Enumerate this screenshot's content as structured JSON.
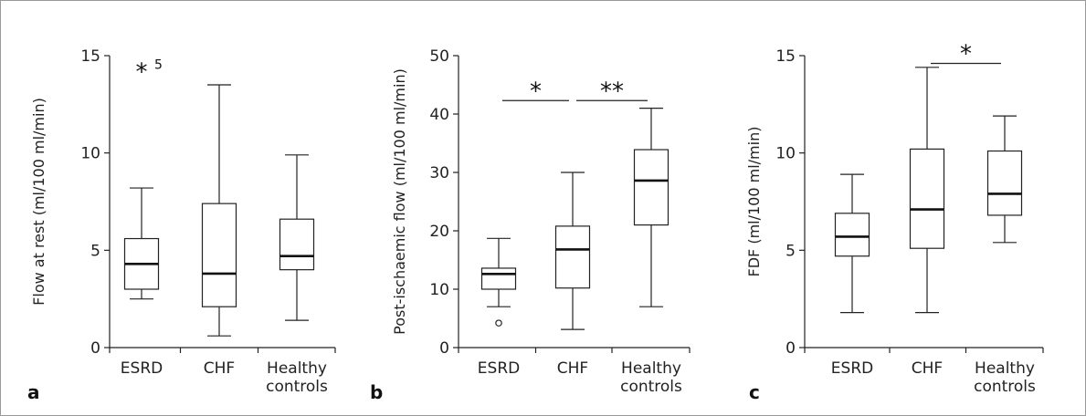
{
  "chart_data": [
    {
      "type": "boxplot",
      "panel": "a",
      "ylabel": "Flow at rest (ml/100 ml/min)",
      "ylim": [
        0,
        15
      ],
      "yticks": [
        0,
        5,
        10,
        15
      ],
      "categories": [
        "ESRD",
        "CHF",
        "Healthy controls"
      ],
      "category_lines": [
        [
          "ESRD"
        ],
        [
          "CHF"
        ],
        [
          "Healthy",
          "controls"
        ]
      ],
      "boxes": [
        {
          "min": 2.5,
          "q1": 3.0,
          "median": 4.3,
          "q3": 5.6,
          "max": 8.2
        },
        {
          "min": 0.6,
          "q1": 2.1,
          "median": 3.8,
          "q3": 7.4,
          "max": 13.5
        },
        {
          "min": 1.4,
          "q1": 4.0,
          "median": 4.7,
          "q3": 6.6,
          "max": 9.9
        }
      ],
      "outliers": [],
      "annotations": [
        {
          "category_index": 0,
          "y": 14.5,
          "symbol": "*",
          "label": "5"
        }
      ],
      "significance": []
    },
    {
      "type": "boxplot",
      "panel": "b",
      "ylabel": "Post-ischaemic flow (ml/100 ml/min)",
      "ylim": [
        0,
        50
      ],
      "yticks": [
        0,
        10,
        20,
        30,
        40,
        50
      ],
      "categories": [
        "ESRD",
        "CHF",
        "Healthy controls"
      ],
      "category_lines": [
        [
          "ESRD"
        ],
        [
          "CHF"
        ],
        [
          "Healthy",
          "controls"
        ]
      ],
      "boxes": [
        {
          "min": 7.0,
          "q1": 10.0,
          "median": 12.6,
          "q3": 13.6,
          "max": 18.7
        },
        {
          "min": 3.1,
          "q1": 10.2,
          "median": 16.8,
          "q3": 20.8,
          "max": 30.0
        },
        {
          "min": 7.0,
          "q1": 21.0,
          "median": 28.6,
          "q3": 33.9,
          "max": 41.0
        }
      ],
      "outliers": [
        {
          "category_index": 0,
          "y": 4.2
        }
      ],
      "annotations": [],
      "significance": [
        {
          "from": 0,
          "to": 1,
          "y": 42.3,
          "label": "*"
        },
        {
          "from": 1,
          "to": 2,
          "y": 42.3,
          "label": "**"
        }
      ]
    },
    {
      "type": "boxplot",
      "panel": "c",
      "ylabel": "FDF (ml/100 ml/min)",
      "ylim": [
        0,
        15
      ],
      "yticks": [
        0,
        5,
        10,
        15
      ],
      "categories": [
        "ESRD",
        "CHF",
        "Healthy controls"
      ],
      "category_lines": [
        [
          "ESRD"
        ],
        [
          "CHF"
        ],
        [
          "Healthy",
          "controls"
        ]
      ],
      "boxes": [
        {
          "min": 1.8,
          "q1": 4.7,
          "median": 5.7,
          "q3": 6.9,
          "max": 8.9
        },
        {
          "min": 1.8,
          "q1": 5.1,
          "median": 7.1,
          "q3": 10.2,
          "max": 14.4
        },
        {
          "min": 5.4,
          "q1": 6.8,
          "median": 7.9,
          "q3": 10.1,
          "max": 11.9
        }
      ],
      "outliers": [],
      "annotations": [],
      "significance": [
        {
          "from": 1,
          "to": 2,
          "y": 14.6,
          "label": "*"
        }
      ]
    }
  ]
}
